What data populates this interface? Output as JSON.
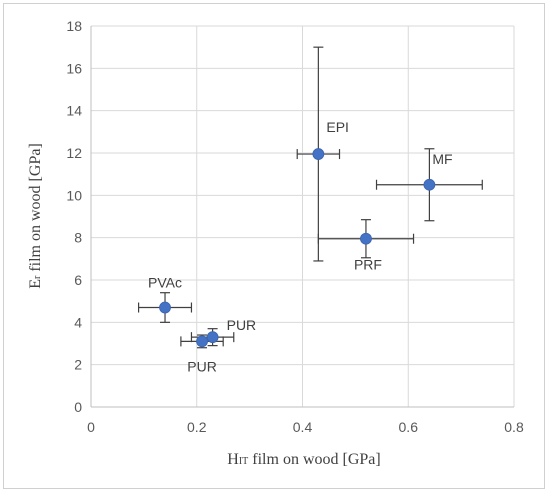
{
  "chart_data": {
    "type": "scatter",
    "x_axis": {
      "label_main": "H",
      "label_sub": "IT",
      "label_rest": " film on wood [GPa]",
      "range": [
        0,
        0.8
      ],
      "ticks": [
        "0",
        "0.2",
        "0.4",
        "0.6",
        "0.8"
      ],
      "tick_values": [
        0,
        0.2,
        0.4,
        0.6,
        0.8
      ]
    },
    "y_axis": {
      "label_main": "E",
      "label_sub": "r",
      "label_rest": " film on wood [GPa]",
      "range": [
        0,
        18
      ],
      "ticks": [
        "0",
        "2",
        "4",
        "6",
        "8",
        "10",
        "12",
        "14",
        "16",
        "18"
      ],
      "tick_values": [
        0,
        2,
        4,
        6,
        8,
        10,
        12,
        14,
        16,
        18
      ]
    },
    "grid": true,
    "legend": "none",
    "marker_color": "#4472c4",
    "errorbar_color": "#404040",
    "points": [
      {
        "label": "EPI",
        "x": 0.43,
        "y": 11.95,
        "x_err": 0.04,
        "y_err_minus": 5.05,
        "y_err_plus": 5.05,
        "label_pos": "above-right"
      },
      {
        "label": "MF",
        "x": 0.64,
        "y": 10.5,
        "x_err": 0.1,
        "y_err_minus": 1.7,
        "y_err_plus": 1.7,
        "label_pos": "above-right"
      },
      {
        "label": "PRF",
        "x": 0.52,
        "y": 7.95,
        "x_err": 0.09,
        "y_err_minus": 0.9,
        "y_err_plus": 0.9,
        "label_pos": "below"
      },
      {
        "label": "PVAc",
        "x": 0.14,
        "y": 4.7,
        "x_err": 0.05,
        "y_err_minus": 0.7,
        "y_err_plus": 0.7,
        "label_pos": "above"
      },
      {
        "label": "PUR",
        "x": 0.23,
        "y": 3.3,
        "x_err": 0.04,
        "y_err_minus": 0.4,
        "y_err_plus": 0.4,
        "label_pos": "above-right"
      },
      {
        "label": "PUR",
        "x": 0.21,
        "y": 3.1,
        "x_err": 0.04,
        "y_err_minus": 0.3,
        "y_err_plus": 0.3,
        "label_pos": "below"
      }
    ]
  }
}
